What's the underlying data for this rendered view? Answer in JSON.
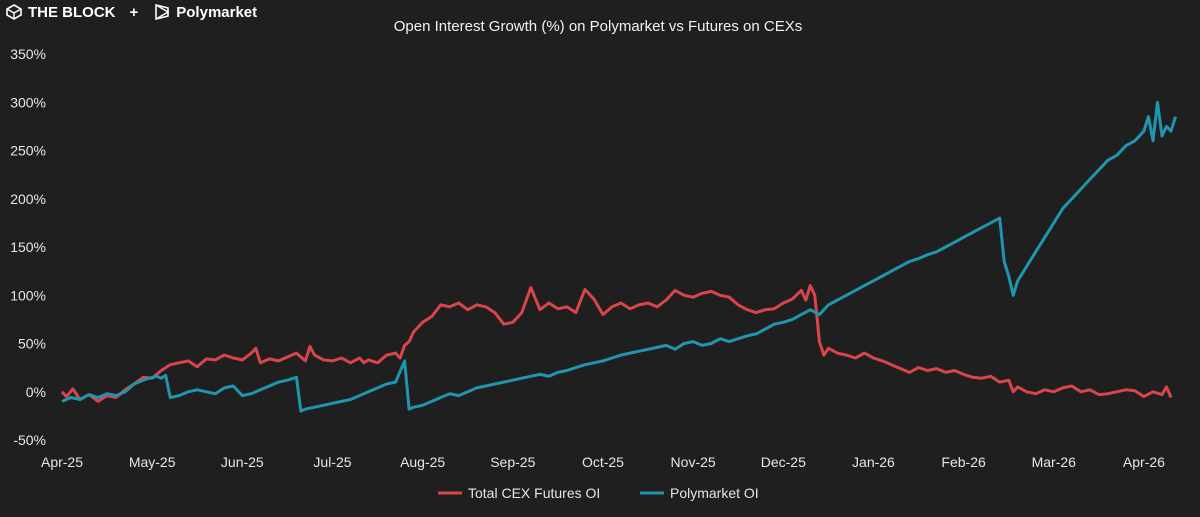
{
  "brand": {
    "the_block": "THE BLOCK",
    "plus": "+",
    "polymarket": "Polymarket"
  },
  "colors": {
    "background": "#1f1f1f",
    "cex": "#d9454a",
    "polymarket": "#1f95ae",
    "text": "#e6e6e6"
  },
  "chart_data": {
    "type": "line",
    "title": "Open Interest Growth (%) on Polymarket vs Futures on CEXs",
    "xlabel": "",
    "ylabel": "",
    "x_ticks": [
      "Apr-25",
      "May-25",
      "Jun-25",
      "Jul-25",
      "Aug-25",
      "Sep-25",
      "Oct-25",
      "Nov-25",
      "Dec-25",
      "Jan-26",
      "Feb-26",
      "Mar-26",
      "Apr-26"
    ],
    "x_range_months": [
      0,
      12.4
    ],
    "y_ticks": [
      "-50%",
      "0%",
      "50%",
      "100%",
      "150%",
      "200%",
      "250%",
      "300%",
      "350%"
    ],
    "ylim": [
      -50,
      350
    ],
    "grid": false,
    "legend_position": "bottom-center",
    "series": [
      {
        "name": "Total CEX Futures OI",
        "color": "#d9454a",
        "points": [
          [
            0,
            0
          ],
          [
            0.05,
            -5
          ],
          [
            0.12,
            3
          ],
          [
            0.2,
            -8
          ],
          [
            0.3,
            -3
          ],
          [
            0.4,
            -10
          ],
          [
            0.5,
            -4
          ],
          [
            0.6,
            -6
          ],
          [
            0.7,
            2
          ],
          [
            0.8,
            8
          ],
          [
            0.9,
            15
          ],
          [
            1.0,
            14
          ],
          [
            1.1,
            22
          ],
          [
            1.2,
            28
          ],
          [
            1.3,
            30
          ],
          [
            1.4,
            32
          ],
          [
            1.5,
            26
          ],
          [
            1.6,
            34
          ],
          [
            1.7,
            33
          ],
          [
            1.8,
            38
          ],
          [
            1.9,
            35
          ],
          [
            2.0,
            33
          ],
          [
            2.1,
            40
          ],
          [
            2.15,
            45
          ],
          [
            2.2,
            30
          ],
          [
            2.3,
            34
          ],
          [
            2.4,
            32
          ],
          [
            2.5,
            36
          ],
          [
            2.6,
            40
          ],
          [
            2.7,
            32
          ],
          [
            2.75,
            47
          ],
          [
            2.8,
            38
          ],
          [
            2.9,
            33
          ],
          [
            3.0,
            32
          ],
          [
            3.1,
            35
          ],
          [
            3.2,
            30
          ],
          [
            3.3,
            35
          ],
          [
            3.35,
            30
          ],
          [
            3.4,
            33
          ],
          [
            3.5,
            30
          ],
          [
            3.6,
            38
          ],
          [
            3.7,
            40
          ],
          [
            3.75,
            35
          ],
          [
            3.8,
            48
          ],
          [
            3.85,
            52
          ],
          [
            3.9,
            62
          ],
          [
            4.0,
            72
          ],
          [
            4.1,
            78
          ],
          [
            4.2,
            90
          ],
          [
            4.3,
            88
          ],
          [
            4.4,
            92
          ],
          [
            4.5,
            85
          ],
          [
            4.6,
            90
          ],
          [
            4.7,
            88
          ],
          [
            4.8,
            82
          ],
          [
            4.9,
            70
          ],
          [
            5.0,
            72
          ],
          [
            5.1,
            82
          ],
          [
            5.2,
            108
          ],
          [
            5.3,
            85
          ],
          [
            5.4,
            92
          ],
          [
            5.5,
            86
          ],
          [
            5.6,
            88
          ],
          [
            5.7,
            82
          ],
          [
            5.8,
            106
          ],
          [
            5.9,
            96
          ],
          [
            6.0,
            80
          ],
          [
            6.1,
            88
          ],
          [
            6.2,
            92
          ],
          [
            6.3,
            86
          ],
          [
            6.4,
            90
          ],
          [
            6.5,
            92
          ],
          [
            6.6,
            88
          ],
          [
            6.7,
            95
          ],
          [
            6.8,
            105
          ],
          [
            6.9,
            100
          ],
          [
            7.0,
            98
          ],
          [
            7.1,
            102
          ],
          [
            7.2,
            104
          ],
          [
            7.3,
            100
          ],
          [
            7.4,
            98
          ],
          [
            7.5,
            90
          ],
          [
            7.6,
            85
          ],
          [
            7.7,
            82
          ],
          [
            7.8,
            85
          ],
          [
            7.9,
            86
          ],
          [
            8.0,
            92
          ],
          [
            8.1,
            96
          ],
          [
            8.2,
            105
          ],
          [
            8.25,
            95
          ],
          [
            8.3,
            110
          ],
          [
            8.35,
            100
          ],
          [
            8.4,
            52
          ],
          [
            8.45,
            38
          ],
          [
            8.5,
            45
          ],
          [
            8.6,
            40
          ],
          [
            8.7,
            38
          ],
          [
            8.8,
            35
          ],
          [
            8.9,
            40
          ],
          [
            9.0,
            35
          ],
          [
            9.1,
            32
          ],
          [
            9.2,
            28
          ],
          [
            9.3,
            24
          ],
          [
            9.4,
            20
          ],
          [
            9.5,
            25
          ],
          [
            9.6,
            22
          ],
          [
            9.7,
            24
          ],
          [
            9.8,
            20
          ],
          [
            9.9,
            22
          ],
          [
            10.0,
            18
          ],
          [
            10.1,
            15
          ],
          [
            10.2,
            14
          ],
          [
            10.3,
            16
          ],
          [
            10.4,
            10
          ],
          [
            10.5,
            12
          ],
          [
            10.55,
            0
          ],
          [
            10.6,
            5
          ],
          [
            10.7,
            0
          ],
          [
            10.8,
            -2
          ],
          [
            10.9,
            2
          ],
          [
            11.0,
            0
          ],
          [
            11.1,
            4
          ],
          [
            11.2,
            6
          ],
          [
            11.3,
            0
          ],
          [
            11.4,
            2
          ],
          [
            11.5,
            -3
          ],
          [
            11.6,
            -2
          ],
          [
            11.7,
            0
          ],
          [
            11.8,
            2
          ],
          [
            11.9,
            1
          ],
          [
            12.0,
            -5
          ],
          [
            12.1,
            0
          ],
          [
            12.2,
            -3
          ],
          [
            12.25,
            5
          ],
          [
            12.3,
            -6
          ]
        ]
      },
      {
        "name": "Polymarket OI",
        "color": "#1f95ae",
        "points": [
          [
            0,
            -10
          ],
          [
            0.1,
            -6
          ],
          [
            0.2,
            -8
          ],
          [
            0.3,
            -3
          ],
          [
            0.4,
            -6
          ],
          [
            0.5,
            -2
          ],
          [
            0.6,
            -4
          ],
          [
            0.7,
            0
          ],
          [
            0.8,
            8
          ],
          [
            0.9,
            12
          ],
          [
            1.0,
            15
          ],
          [
            1.05,
            16
          ],
          [
            1.1,
            14
          ],
          [
            1.15,
            17
          ],
          [
            1.2,
            -6
          ],
          [
            1.3,
            -4
          ],
          [
            1.4,
            0
          ],
          [
            1.5,
            2
          ],
          [
            1.6,
            0
          ],
          [
            1.7,
            -2
          ],
          [
            1.8,
            4
          ],
          [
            1.9,
            6
          ],
          [
            2.0,
            -4
          ],
          [
            2.1,
            -2
          ],
          [
            2.2,
            2
          ],
          [
            2.3,
            6
          ],
          [
            2.4,
            10
          ],
          [
            2.5,
            12
          ],
          [
            2.6,
            15
          ],
          [
            2.65,
            -20
          ],
          [
            2.7,
            -18
          ],
          [
            2.8,
            -16
          ],
          [
            2.9,
            -14
          ],
          [
            3.0,
            -12
          ],
          [
            3.1,
            -10
          ],
          [
            3.2,
            -8
          ],
          [
            3.3,
            -4
          ],
          [
            3.4,
            0
          ],
          [
            3.5,
            4
          ],
          [
            3.6,
            8
          ],
          [
            3.7,
            10
          ],
          [
            3.8,
            32
          ],
          [
            3.85,
            -18
          ],
          [
            3.9,
            -16
          ],
          [
            4.0,
            -14
          ],
          [
            4.1,
            -10
          ],
          [
            4.2,
            -6
          ],
          [
            4.3,
            -2
          ],
          [
            4.4,
            -4
          ],
          [
            4.5,
            0
          ],
          [
            4.6,
            4
          ],
          [
            4.7,
            6
          ],
          [
            4.8,
            8
          ],
          [
            4.9,
            10
          ],
          [
            5.0,
            12
          ],
          [
            5.1,
            14
          ],
          [
            5.2,
            16
          ],
          [
            5.3,
            18
          ],
          [
            5.4,
            16
          ],
          [
            5.5,
            20
          ],
          [
            5.6,
            22
          ],
          [
            5.7,
            25
          ],
          [
            5.8,
            28
          ],
          [
            5.9,
            30
          ],
          [
            6.0,
            32
          ],
          [
            6.1,
            35
          ],
          [
            6.2,
            38
          ],
          [
            6.3,
            40
          ],
          [
            6.4,
            42
          ],
          [
            6.5,
            44
          ],
          [
            6.6,
            46
          ],
          [
            6.7,
            48
          ],
          [
            6.8,
            44
          ],
          [
            6.9,
            50
          ],
          [
            7.0,
            52
          ],
          [
            7.1,
            48
          ],
          [
            7.2,
            50
          ],
          [
            7.3,
            55
          ],
          [
            7.4,
            52
          ],
          [
            7.5,
            55
          ],
          [
            7.6,
            58
          ],
          [
            7.7,
            60
          ],
          [
            7.8,
            65
          ],
          [
            7.9,
            70
          ],
          [
            8.0,
            72
          ],
          [
            8.1,
            75
          ],
          [
            8.2,
            80
          ],
          [
            8.3,
            85
          ],
          [
            8.4,
            80
          ],
          [
            8.5,
            90
          ],
          [
            8.6,
            95
          ],
          [
            8.7,
            100
          ],
          [
            8.8,
            105
          ],
          [
            8.9,
            110
          ],
          [
            9.0,
            115
          ],
          [
            9.1,
            120
          ],
          [
            9.2,
            125
          ],
          [
            9.3,
            130
          ],
          [
            9.4,
            135
          ],
          [
            9.5,
            138
          ],
          [
            9.6,
            142
          ],
          [
            9.7,
            145
          ],
          [
            9.8,
            150
          ],
          [
            9.9,
            155
          ],
          [
            10.0,
            160
          ],
          [
            10.1,
            165
          ],
          [
            10.2,
            170
          ],
          [
            10.3,
            175
          ],
          [
            10.4,
            180
          ],
          [
            10.45,
            135
          ],
          [
            10.5,
            120
          ],
          [
            10.55,
            100
          ],
          [
            10.6,
            115
          ],
          [
            10.7,
            130
          ],
          [
            10.8,
            145
          ],
          [
            10.9,
            160
          ],
          [
            11.0,
            175
          ],
          [
            11.1,
            190
          ],
          [
            11.2,
            200
          ],
          [
            11.3,
            210
          ],
          [
            11.4,
            220
          ],
          [
            11.5,
            230
          ],
          [
            11.6,
            240
          ],
          [
            11.7,
            245
          ],
          [
            11.8,
            255
          ],
          [
            11.9,
            260
          ],
          [
            12.0,
            270
          ],
          [
            12.05,
            285
          ],
          [
            12.1,
            260
          ],
          [
            12.15,
            300
          ],
          [
            12.2,
            265
          ],
          [
            12.25,
            275
          ],
          [
            12.3,
            270
          ],
          [
            12.35,
            285
          ]
        ]
      }
    ]
  }
}
